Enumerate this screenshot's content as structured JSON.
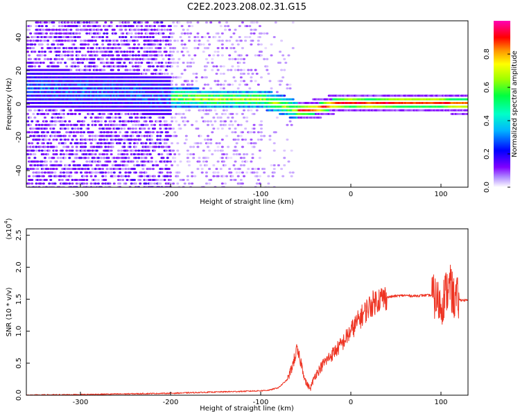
{
  "title": "C2E2.2023.208.02.31.G15",
  "chart_data": [
    {
      "type": "heatmap",
      "xlabel": "Height of straight line (km)",
      "ylabel": "Frequency (Hz)",
      "xlim": [
        -360,
        130
      ],
      "ylim": [
        -50,
        50
      ],
      "xticks": [
        -300,
        -200,
        -100,
        0,
        100
      ],
      "yticks": [
        -40,
        -20,
        0,
        20,
        40
      ],
      "colorbar": {
        "label": "Normalized spectral amplitude",
        "range": [
          0.0,
          1.0
        ],
        "ticks": [
          0.0,
          0.2,
          0.4,
          0.6,
          0.8
        ],
        "colormap": [
          "#ffffff",
          "#8000ff",
          "#0000ff",
          "#00c8ff",
          "#00ff80",
          "#80ff00",
          "#ffff00",
          "#ff8000",
          "#ff0000",
          "#ff00a0"
        ]
      },
      "ridge": {
        "x": [
          -360,
          -300,
          -250,
          -200,
          -150,
          -100,
          -80,
          -60,
          -40,
          -20,
          0,
          20,
          50,
          80,
          100,
          110,
          130
        ],
        "freq": [
          10,
          8,
          7,
          4,
          3,
          3,
          0,
          -4,
          -3,
          0,
          1,
          0,
          1,
          1,
          1,
          0,
          0
        ]
      }
    },
    {
      "type": "line",
      "xlabel": "Height of straight line (km)",
      "ylabel": "SNR (10 * v/v)",
      "multiplier": "(x10",
      "multiplier_exp": "4",
      "multiplier_close": ")",
      "xlim": [
        -360,
        130
      ],
      "ylim": [
        0,
        2.6
      ],
      "xticks": [
        -300,
        -200,
        -100,
        0,
        100
      ],
      "yticks": [
        0.0,
        0.5,
        1.0,
        1.5,
        2.0,
        2.5
      ],
      "series": [
        {
          "color": "#ee3322",
          "x": [
            -360,
            -300,
            -250,
            -200,
            -150,
            -120,
            -100,
            -90,
            -80,
            -70,
            -65,
            -60,
            -55,
            -50,
            -45,
            -40,
            -30,
            -20,
            -10,
            0,
            10,
            20,
            30,
            40,
            50,
            60,
            70,
            80,
            90,
            95,
            100,
            105,
            110,
            115,
            120,
            130
          ],
          "y": [
            0.0,
            0.01,
            0.02,
            0.03,
            0.05,
            0.06,
            0.07,
            0.08,
            0.12,
            0.25,
            0.45,
            0.7,
            0.5,
            0.2,
            0.1,
            0.3,
            0.5,
            0.65,
            0.8,
            1.0,
            1.2,
            1.38,
            1.5,
            1.53,
            1.55,
            1.56,
            1.55,
            1.56,
            1.56,
            1.5,
            1.4,
            1.6,
            1.7,
            1.5,
            1.49,
            1.48
          ]
        }
      ]
    }
  ]
}
